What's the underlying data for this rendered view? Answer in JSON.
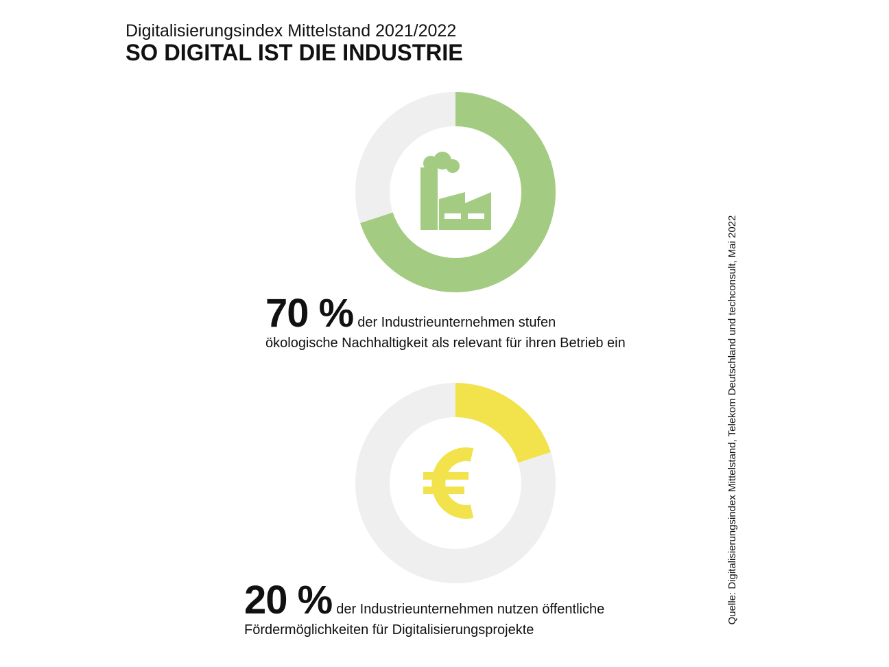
{
  "header": {
    "subtitle": "Digitalisierungsindex Mittelstand 2021/2022",
    "title": "SO DIGITAL IST DIE INDUSTRIE"
  },
  "source": "Quelle: Digitalisierungsindex Mittelstand, Telekom Deutschland und techconsult, Mai 2022",
  "colors": {
    "track": "#efefef",
    "green": "#a3cc82",
    "yellow": "#f2e24c"
  },
  "chart_data": [
    {
      "type": "pie",
      "variant": "donut",
      "icon": "factory-icon",
      "values": [
        70,
        30
      ],
      "colors": [
        "#a3cc82",
        "#efefef"
      ],
      "value_label": "70 %",
      "text_line1": "der Industrieunternehmen stufen",
      "text_line2": "ökologische Nachhaltigkeit als relevant für ihren Betrieb ein"
    },
    {
      "type": "pie",
      "variant": "donut",
      "icon": "euro-icon",
      "values": [
        20,
        80
      ],
      "colors": [
        "#f2e24c",
        "#efefef"
      ],
      "value_label": "20 %",
      "text_line1": "der Industrieunternehmen nutzen öffentliche",
      "text_line2": "Fördermöglichkeiten für Digitalisierungsprojekte"
    }
  ]
}
